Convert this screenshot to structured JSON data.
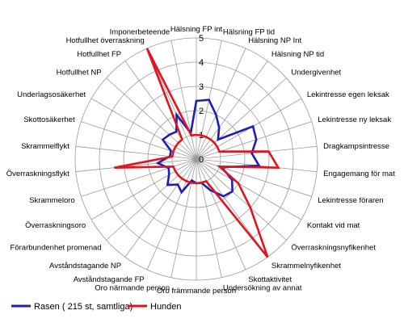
{
  "chart_data": {
    "type": "radar",
    "r_range": [
      0,
      5
    ],
    "r_ticks": [
      0,
      1,
      2,
      3,
      4,
      5
    ],
    "r_tick_labels": [
      "0",
      "1",
      "2",
      "3",
      "4",
      "5"
    ],
    "grid": true,
    "categories": [
      "Hälsning FP int",
      "Hälsning FP tid",
      "Hälsning NP Int",
      "Hälsning NP tid",
      "Undergivenhet",
      "Lekintresse egen leksak",
      "Lekintresse ny leksak",
      "Dragkampsintresse",
      "Engagemang för mat",
      "Lekintresse föraren",
      "Kontakt vid mat",
      "Överraskningsnyfikenhet",
      "Skrammelnyfikenhet",
      "Skottaktivitet",
      "Undersökning av annat",
      "Oro främmande person",
      "Oro närmande person",
      "Avståndstagande FP",
      "Avståndstagande NP",
      "Förarbundenhet promenad",
      "Överraskningsoro",
      "Skrammeloro",
      "Överraskningsflykt",
      "Skrammelflykt",
      "Skottosäkerhet",
      "Underlagsosäkerhet",
      "Hotfullhet NP",
      "Hotfullhet FP",
      "Hotfullhet överraskning",
      "Imponerbeteende"
    ],
    "series": [
      {
        "name": "Rasen ( 215 st, samtliga)",
        "color": "#1f1fb4",
        "values": [
          2.4,
          2.5,
          2.0,
          1.6,
          1.2,
          2.7,
          2.6,
          2.3,
          2.6,
          1.1,
          1.7,
          2.0,
          1.9,
          1.4,
          1.0,
          1.0,
          0.9,
          1.5,
          1.3,
          1.6,
          1.3,
          1.2,
          1.6,
          1.1,
          1.1,
          1.6,
          1.5,
          1.4,
          2.0,
          1.1
        ]
      },
      {
        "name": "Hunden",
        "color": "#e0141e",
        "values": [
          1.0,
          1.0,
          1.0,
          1.0,
          1.0,
          1.0,
          1.0,
          3.0,
          3.4,
          1.0,
          2.0,
          3.0,
          5.0,
          1.0,
          1.0,
          1.0,
          1.0,
          1.0,
          1.0,
          1.0,
          1.0,
          1.0,
          3.4,
          1.0,
          1.0,
          1.0,
          1.0,
          1.0,
          5.0,
          1.0
        ]
      }
    ]
  }
}
